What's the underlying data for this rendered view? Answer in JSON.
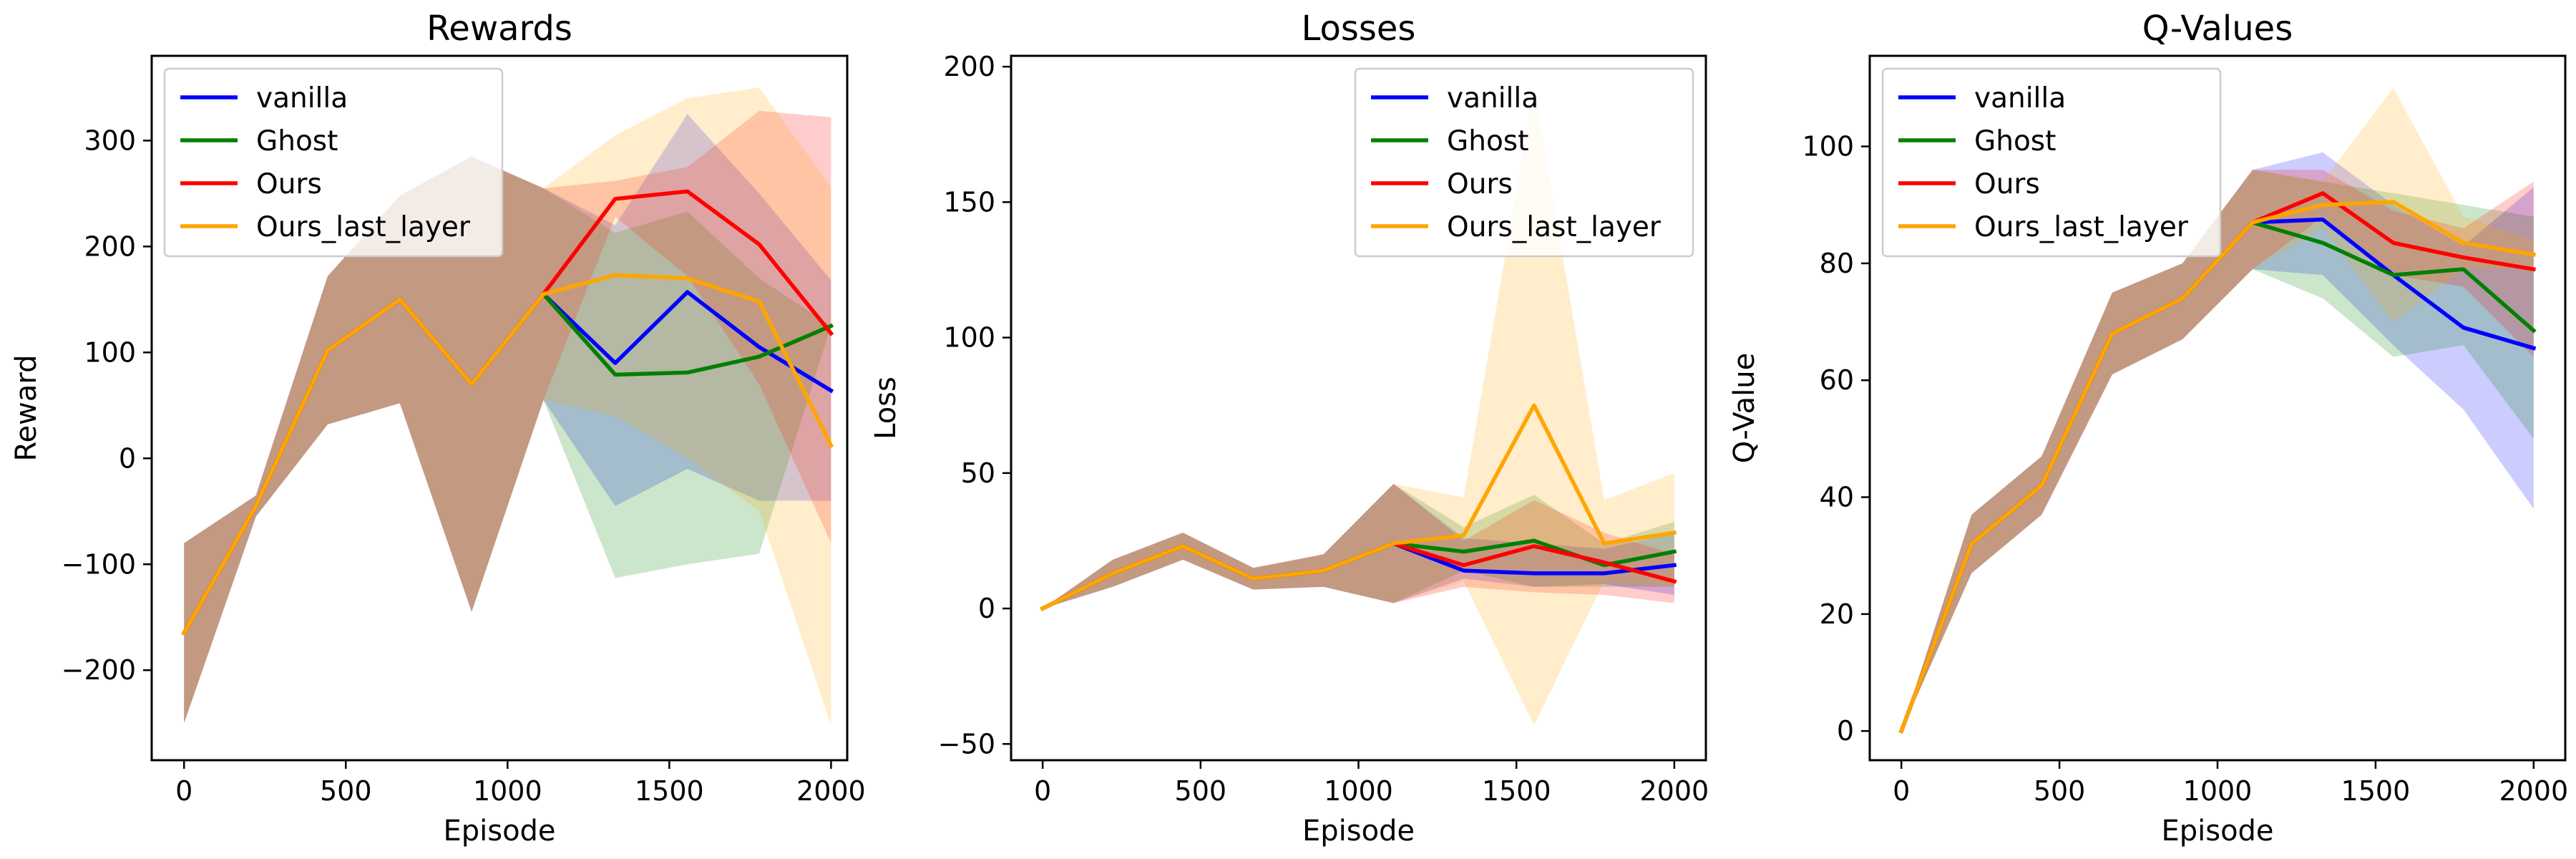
{
  "chart_data": [
    {
      "type": "line",
      "title": "Rewards",
      "xlabel": "Episode",
      "ylabel": "Reward",
      "xlim": [
        -100,
        2050
      ],
      "ylim": [
        -285,
        380
      ],
      "xticks": [
        "0",
        "500",
        "1000",
        "1500",
        "2000"
      ],
      "xtick_values": [
        0,
        500,
        1000,
        1500,
        2000
      ],
      "yticks": [
        "−200",
        "−100",
        "0",
        "100",
        "200",
        "300"
      ],
      "ytick_values": [
        -200,
        -100,
        0,
        100,
        200,
        300
      ],
      "grid": false,
      "legend_placement": "upper-left",
      "series": [
        {
          "name": "vanilla",
          "color": "#0000ff",
          "x": [
            0,
            222,
            444,
            667,
            889,
            1111,
            1333,
            1556,
            1778,
            2000
          ],
          "y": [
            -165,
            -45,
            102,
            150,
            70,
            155,
            90,
            157,
            105,
            64
          ],
          "lower": [
            -250,
            -55,
            32,
            52,
            -145,
            55,
            -45,
            -10,
            -40,
            -40
          ],
          "upper": [
            -80,
            -35,
            172,
            248,
            285,
            255,
            220,
            325,
            250,
            168
          ]
        },
        {
          "name": "Ghost",
          "color": "#008000",
          "x": [
            0,
            222,
            444,
            667,
            889,
            1111,
            1333,
            1556,
            1778,
            2000
          ],
          "y": [
            -165,
            -45,
            102,
            150,
            70,
            155,
            79,
            81,
            96,
            125
          ],
          "lower": [
            -250,
            -55,
            32,
            52,
            -145,
            55,
            -113,
            -100,
            -90,
            125
          ],
          "upper": [
            -80,
            -35,
            172,
            248,
            285,
            255,
            213,
            233,
            170,
            125
          ]
        },
        {
          "name": "Ours",
          "color": "#ff0000",
          "x": [
            0,
            222,
            444,
            667,
            889,
            1111,
            1333,
            1556,
            1778,
            2000
          ],
          "y": [
            -165,
            -45,
            102,
            150,
            70,
            155,
            245,
            252,
            202,
            118
          ],
          "lower": [
            -250,
            -55,
            32,
            52,
            -145,
            55,
            228,
            172,
            70,
            -80
          ],
          "upper": [
            -80,
            -35,
            172,
            248,
            285,
            255,
            262,
            275,
            328,
            322
          ]
        },
        {
          "name": "Ours_last_layer",
          "color": "#ffa500",
          "x": [
            0,
            222,
            444,
            667,
            889,
            1111,
            1333,
            1556,
            1778,
            2000
          ],
          "y": [
            -165,
            -45,
            102,
            150,
            70,
            155,
            173,
            170,
            148,
            12
          ],
          "lower": [
            -250,
            -55,
            32,
            52,
            -145,
            55,
            40,
            0,
            -50,
            -252
          ],
          "upper": [
            -80,
            -35,
            172,
            248,
            285,
            255,
            305,
            340,
            350,
            256
          ]
        }
      ]
    },
    {
      "type": "line",
      "title": "Losses",
      "xlabel": "Episode",
      "ylabel": "Loss",
      "xlim": [
        -100,
        2100
      ],
      "ylim": [
        -56,
        204
      ],
      "xticks": [
        "0",
        "500",
        "1000",
        "1500",
        "2000"
      ],
      "xtick_values": [
        0,
        500,
        1000,
        1500,
        2000
      ],
      "yticks": [
        "−50",
        "0",
        "50",
        "100",
        "150",
        "200"
      ],
      "ytick_values": [
        -50,
        0,
        50,
        100,
        150,
        200
      ],
      "grid": false,
      "legend_placement": "upper-right",
      "series": [
        {
          "name": "vanilla",
          "color": "#0000ff",
          "x": [
            0,
            222,
            444,
            667,
            889,
            1111,
            1333,
            1556,
            1778,
            2000
          ],
          "y": [
            0,
            13,
            23,
            11,
            14,
            24,
            14,
            13,
            13,
            16
          ],
          "lower": [
            0,
            8,
            18,
            7,
            8,
            2,
            11,
            8,
            9,
            5
          ],
          "upper": [
            0,
            18,
            28,
            15,
            20,
            46,
            26,
            24,
            22,
            28
          ]
        },
        {
          "name": "Ghost",
          "color": "#008000",
          "x": [
            0,
            222,
            444,
            667,
            889,
            1111,
            1333,
            1556,
            1778,
            2000
          ],
          "y": [
            0,
            13,
            23,
            11,
            14,
            24,
            21,
            25,
            16,
            21
          ],
          "lower": [
            0,
            8,
            18,
            7,
            8,
            2,
            14,
            8,
            8,
            8
          ],
          "upper": [
            0,
            18,
            28,
            15,
            20,
            46,
            30,
            42,
            24,
            32
          ]
        },
        {
          "name": "Ours",
          "color": "#ff0000",
          "x": [
            0,
            222,
            444,
            667,
            889,
            1111,
            1333,
            1556,
            1778,
            2000
          ],
          "y": [
            0,
            13,
            23,
            11,
            14,
            24,
            16,
            23,
            17,
            10
          ],
          "lower": [
            0,
            8,
            18,
            7,
            8,
            2,
            8,
            6,
            5,
            2
          ],
          "upper": [
            0,
            18,
            28,
            15,
            20,
            46,
            25,
            40,
            28,
            20
          ]
        },
        {
          "name": "Ours_last_layer",
          "color": "#ffa500",
          "x": [
            0,
            222,
            444,
            667,
            889,
            1111,
            1333,
            1556,
            1778,
            2000
          ],
          "y": [
            0,
            13,
            23,
            11,
            14,
            24,
            27,
            75,
            24,
            28
          ],
          "lower": [
            0,
            8,
            18,
            7,
            8,
            2,
            10,
            -43,
            10,
            8
          ],
          "upper": [
            0,
            18,
            28,
            15,
            20,
            46,
            41,
            192,
            40,
            50
          ]
        }
      ]
    },
    {
      "type": "line",
      "title": "Q-Values",
      "xlabel": "Episode",
      "ylabel": "Q-Value",
      "xlim": [
        -100,
        2100
      ],
      "ylim": [
        -5,
        115.5
      ],
      "xticks": [
        "0",
        "500",
        "1000",
        "1500",
        "2000"
      ],
      "xtick_values": [
        0,
        500,
        1000,
        1500,
        2000
      ],
      "yticks": [
        "0",
        "20",
        "40",
        "60",
        "80",
        "100"
      ],
      "ytick_values": [
        0,
        20,
        40,
        60,
        80,
        100
      ],
      "grid": false,
      "legend_placement": "upper-left",
      "series": [
        {
          "name": "vanilla",
          "color": "#0000ff",
          "x": [
            0,
            222,
            444,
            667,
            889,
            1111,
            1333,
            1556,
            1778,
            2000
          ],
          "y": [
            0,
            32,
            42,
            68,
            74,
            87,
            87.5,
            78,
            69,
            65.5
          ],
          "lower": [
            0,
            27,
            37,
            61,
            67,
            79,
            78,
            66,
            55,
            38
          ],
          "upper": [
            0,
            37,
            47,
            75,
            80,
            96,
            99,
            90,
            83,
            93
          ]
        },
        {
          "name": "Ghost",
          "color": "#008000",
          "x": [
            0,
            222,
            444,
            667,
            889,
            1111,
            1333,
            1556,
            1778,
            2000
          ],
          "y": [
            0,
            32,
            42,
            68,
            74,
            87,
            83.5,
            78,
            79,
            68.5
          ],
          "lower": [
            0,
            27,
            37,
            61,
            67,
            79,
            74,
            64,
            66,
            50
          ],
          "upper": [
            0,
            37,
            47,
            75,
            80,
            96,
            94,
            92,
            90,
            88
          ]
        },
        {
          "name": "Ours",
          "color": "#ff0000",
          "x": [
            0,
            222,
            444,
            667,
            889,
            1111,
            1333,
            1556,
            1778,
            2000
          ],
          "y": [
            0,
            32,
            42,
            68,
            74,
            87,
            92,
            83.5,
            81,
            79
          ],
          "lower": [
            0,
            27,
            37,
            61,
            67,
            79,
            88,
            78,
            76,
            64
          ],
          "upper": [
            0,
            37,
            47,
            75,
            80,
            96,
            96,
            89,
            86,
            94
          ]
        },
        {
          "name": "Ours_last_layer",
          "color": "#ffa500",
          "x": [
            0,
            222,
            444,
            667,
            889,
            1111,
            1333,
            1556,
            1778,
            2000
          ],
          "y": [
            0,
            32,
            42,
            68,
            74,
            87,
            90,
            90.5,
            83.5,
            81.5
          ],
          "lower": [
            0,
            27,
            37,
            61,
            67,
            79,
            86,
            70,
            79,
            79
          ],
          "upper": [
            0,
            37,
            47,
            75,
            80,
            96,
            94,
            110,
            88,
            84
          ]
        }
      ]
    }
  ]
}
